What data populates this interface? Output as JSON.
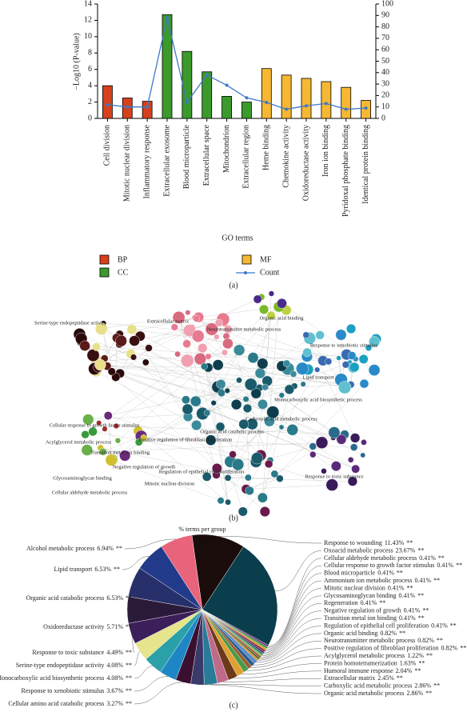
{
  "chart_data": [
    {
      "type": "bar",
      "caption": "(a)",
      "x_label": "GO terms",
      "y_label": "−Log10 (P-value)",
      "categories": [
        "Cell division",
        "Mitotic nuclear division",
        "Inflammatory response",
        "Extracellular exosome",
        "Blood microparticle",
        "Extracellular space",
        "Mitochondrion",
        "Extracellular region",
        "Heme binding",
        "Chemokine activity",
        "Oxidoreductase activity",
        "Iron ion binding",
        "Pyridoxal phosphate binding",
        "Identical protein binding"
      ],
      "series": [
        {
          "name": "BP",
          "color": "#d8401c",
          "values": [
            4.0,
            2.5,
            2.1,
            null,
            null,
            null,
            null,
            null,
            null,
            null,
            null,
            null,
            null,
            null
          ]
        },
        {
          "name": "CC",
          "color": "#3b9a2b",
          "values": [
            null,
            null,
            null,
            12.7,
            8.2,
            5.7,
            2.7,
            2.0,
            null,
            null,
            null,
            null,
            null,
            null
          ]
        },
        {
          "name": "MF",
          "color": "#f6b733",
          "values": [
            null,
            null,
            null,
            null,
            null,
            null,
            null,
            null,
            6.1,
            5.3,
            4.9,
            4.5,
            3.8,
            2.2
          ]
        },
        {
          "name": "Count",
          "color": "#3f78c8",
          "axis": "y2",
          "values": [
            12,
            10,
            10,
            88,
            14,
            38,
            29,
            18,
            14,
            8,
            11,
            13,
            8,
            9
          ]
        }
      ],
      "ylim": [
        0,
        14
      ],
      "yticks": [
        0,
        2,
        4,
        6,
        8,
        10,
        12,
        14
      ],
      "y2lim": [
        0,
        100
      ],
      "y2ticks": [
        0,
        10,
        20,
        30,
        40,
        50,
        60,
        70,
        80,
        90,
        100
      ]
    },
    {
      "type": "pie",
      "caption": "(c)",
      "title": "% terms per group",
      "marker": "**",
      "categories": [
        "Response to wounding",
        "Oxoacid metabolic process",
        "Cellular aldehyde metabolic process",
        "Cellular response to growth factor stimulus",
        "Blood microparticle",
        "Ammonium ion metabolic process",
        "Mitotic nuclear division",
        "Glycosaminoglycan binding",
        "Regeneration",
        "Negative regulation of growth",
        "Transition metal ion binding",
        "Regulation of epithelial cell proliferation",
        "Organic acid binding",
        "Neurotransmitter metabolic process",
        "Positive regulation of fibroblast proliferation",
        "Acylglycerol metabolic process",
        "Protein homotetramerization",
        "Humoral immune response",
        "Extracellular matrix",
        "Carboxylic acid metabolic process",
        "Organic acid metabolic process",
        "Cellular amino acid catabolic process",
        "Response to xenobiotic stimulus",
        "Monocarboxylic acid biosynthetic process",
        "Serine-type endopeptidase activity",
        "Response to toxic substance",
        "Oxidoreductase activity",
        "Organic acid catabolic process",
        "Lipid transport",
        "Alcohol metabolic process"
      ],
      "values": [
        11.43,
        23.67,
        0.41,
        0.41,
        0.41,
        0.41,
        0.41,
        0.41,
        0.41,
        0.41,
        0.41,
        0.41,
        0.82,
        0.82,
        0.82,
        1.22,
        1.63,
        2.04,
        2.45,
        2.86,
        2.86,
        3.27,
        3.67,
        4.08,
        4.08,
        4.49,
        5.71,
        6.53,
        6.53,
        6.94
      ],
      "value_labels": [
        "11.43%",
        "23.67%",
        "0.41%",
        "0.41%",
        "0.41%",
        "0.41%",
        "0.41%",
        "0.41%",
        "0.41%",
        "0.41%",
        "0.41%",
        "0.41%",
        "0.82%",
        "0.82%",
        "0.82%",
        "1.22%",
        "1.63%",
        "2.04%",
        "2.45%",
        "2.86%",
        "2.86%",
        "3.27%",
        "3.67%",
        "4.08%",
        "4.08%",
        "4.49%",
        "5.71%",
        "6.53%",
        "6.53%",
        "6.94%"
      ],
      "colors": [
        "#1b0c0c",
        "#0b3e4d",
        "#6a2a7a",
        "#2f8f3a",
        "#c8a020",
        "#8a1a2a",
        "#4a2a6a",
        "#1e7a6a",
        "#7ab84a",
        "#b03a2a",
        "#3a6a2a",
        "#d88a2a",
        "#5a8ac8",
        "#2a5a8a",
        "#9a5a2a",
        "#4a9a4a",
        "#e0a030",
        "#6a3a1a",
        "#c06a8a",
        "#2a7a9a",
        "#3a3a6a",
        "#3a1030",
        "#1f86c6",
        "#2aa0a8",
        "#e6e48c",
        "#3b1e5a",
        "#2a1a3a",
        "#27306b",
        "#223a8a",
        "#e8647a"
      ]
    }
  ],
  "network": {
    "caption": "(b)",
    "labels": [
      "Organic acid binding",
      "Extracellular matrix",
      "Serine-type endopeptidase activity",
      "Neurotransmitter metabolic process",
      "Response to xenobiotic stimulus",
      "Lipid transport",
      "Monocarboxylic acid biosynthetic process",
      "Carboxylic acid metabolic process",
      "Organic acid catabolic process",
      "Cellular response to growth factor stimulus",
      "Acylglycerol metabolic process",
      "Positive regulation of fibroblast proliferation",
      "Transition metal ion binding",
      "Negative regulation of growth",
      "Regulation of epithelial cell proliferation",
      "Glycosaminoglycan binding",
      "Mitotic nuclear division",
      "Cellular aldehyde metabolic process",
      "Response to toxic substance"
    ]
  }
}
